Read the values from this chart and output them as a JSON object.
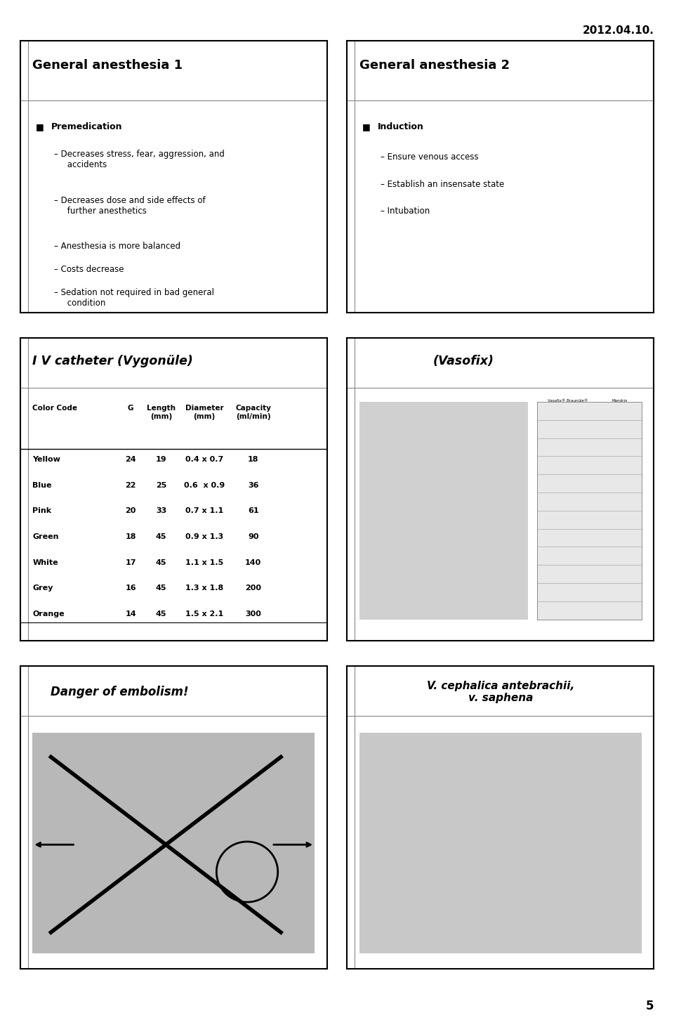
{
  "date_text": "2012.04.10.",
  "page_num": "5",
  "bg_color": "#ffffff",
  "slide_border_color": "#000000",
  "slide_border_lw": 1.5,
  "slide_left_bar_color": "#cccccc",
  "panel1_title": "General anesthesia 1",
  "panel1_bullet": "Premedication",
  "panel1_subitems": [
    "Decreases stress, fear, aggression, and\n     accidents",
    "Decreases dose and side effects of\n     further anesthetics",
    "Anesthesia is more balanced",
    "Costs decrease",
    "Sedation not required in bad general\n     condition"
  ],
  "panel2_title": "General anesthesia 2",
  "panel2_bullet": "Induction",
  "panel2_subitems": [
    "Ensure venous access",
    "Establish an insensate state",
    "Intubation"
  ],
  "panel3_title": "I V catheter (Vygonüle)",
  "panel3_table_headers": [
    "Color Code",
    "G",
    "Length\n(mm)",
    "Diameter\n(mm)",
    "Capacity\n(ml/min)"
  ],
  "panel3_table_rows": [
    [
      "Yellow",
      "24",
      "19",
      "0.4 x 0.7",
      "18"
    ],
    [
      "Blue",
      "22",
      "25",
      "0.6  x 0.9",
      "36"
    ],
    [
      "Pink",
      "20",
      "33",
      "0.7 x 1.1",
      "61"
    ],
    [
      "Green",
      "18",
      "45",
      "0.9 x 1.3",
      "90"
    ],
    [
      "White",
      "17",
      "45",
      "1.1 x 1.5",
      "140"
    ],
    [
      "Grey",
      "16",
      "45",
      "1.3 x 1.8",
      "200"
    ],
    [
      "Orange",
      "14",
      "45",
      "1.5 x 2.1",
      "300"
    ]
  ],
  "panel4_title": "(Vasofix)",
  "panel4_note": "Vasofix® Braunüle®",
  "panel5_title": "Danger of embolism!",
  "panel6_title": "V. cephalica antebrachii,\nv. saphena"
}
